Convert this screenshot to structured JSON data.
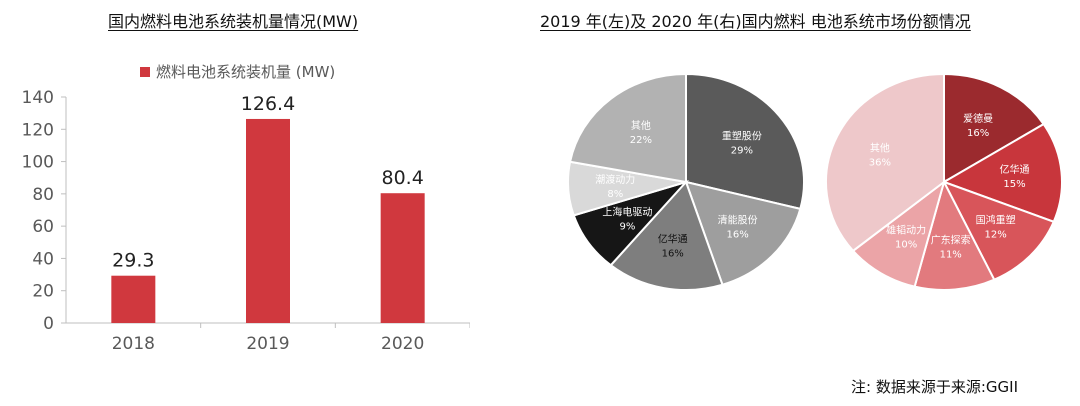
{
  "titles": {
    "left": "国内燃料电池系统装机量情况(MW)",
    "right": "2019 年(左)及 2020 年(右)国内燃料 电池系统市场份额情况"
  },
  "footnote": "注: 数据来源于来源:GGII",
  "colors": {
    "bar": "#d0383e",
    "axis": "#bfbfbf",
    "tick_text": "#595959"
  },
  "chart_data": [
    {
      "type": "bar",
      "title": "国内燃料电池系统装机量情况(MW)",
      "categories": [
        "2018",
        "2019",
        "2020"
      ],
      "series": [
        {
          "name": "燃料电池系统装机量 (MW)",
          "values": [
            29.3,
            126.4,
            80.4
          ],
          "color": "#d0383e"
        }
      ],
      "data_labels": [
        "29.3",
        "126.4",
        "80.4"
      ],
      "ylim": [
        0,
        140
      ],
      "yticks": [
        0,
        20,
        40,
        60,
        80,
        100,
        120,
        140
      ],
      "legend": "top-center",
      "grid": false
    },
    {
      "type": "pie",
      "title": "2019 年",
      "slices": [
        {
          "label": "重塑股份",
          "value": 29,
          "text": "29%",
          "color": "#5a5a5a",
          "label_color": "#ffffff"
        },
        {
          "label": "清能股份",
          "value": 16,
          "text": "16%",
          "color": "#9e9e9e",
          "label_color": "#ffffff"
        },
        {
          "label": "亿华通",
          "value": 16,
          "text": "16%",
          "color": "#7e7e7e",
          "label_color": "#111111"
        },
        {
          "label": "上海电驱动",
          "value": 9,
          "text": "9%",
          "color": "#161616",
          "label_color": "#ffffff"
        },
        {
          "label": "潮渡动力",
          "value": 8,
          "text": "8%",
          "color": "#d9d9d9",
          "label_color": "#ffffff"
        },
        {
          "label": "其他",
          "value": 22,
          "text": "22%",
          "color": "#b2b2b2",
          "label_color": "#ffffff"
        }
      ]
    },
    {
      "type": "pie",
      "title": "2020 年",
      "slices": [
        {
          "label": "爱德曼",
          "value": 16,
          "text": "16%",
          "color": "#9b2a2e",
          "label_color": "#ffffff"
        },
        {
          "label": "亿华通",
          "value": 15,
          "text": "15%",
          "color": "#c8363c",
          "label_color": "#ffffff"
        },
        {
          "label": "国鸿重塑",
          "value": 12,
          "text": "12%",
          "color": "#d8555a",
          "label_color": "#ffffff"
        },
        {
          "label": "广东探索",
          "value": 11,
          "text": "11%",
          "color": "#e27a7e",
          "label_color": "#ffffff"
        },
        {
          "label": "雄韬动力",
          "value": 10,
          "text": "10%",
          "color": "#eba4a7",
          "label_color": "#ffffff"
        },
        {
          "label": "其他",
          "value": 36,
          "text": "36%",
          "color": "#eec8ca",
          "label_color": "#ffffff"
        }
      ]
    }
  ]
}
